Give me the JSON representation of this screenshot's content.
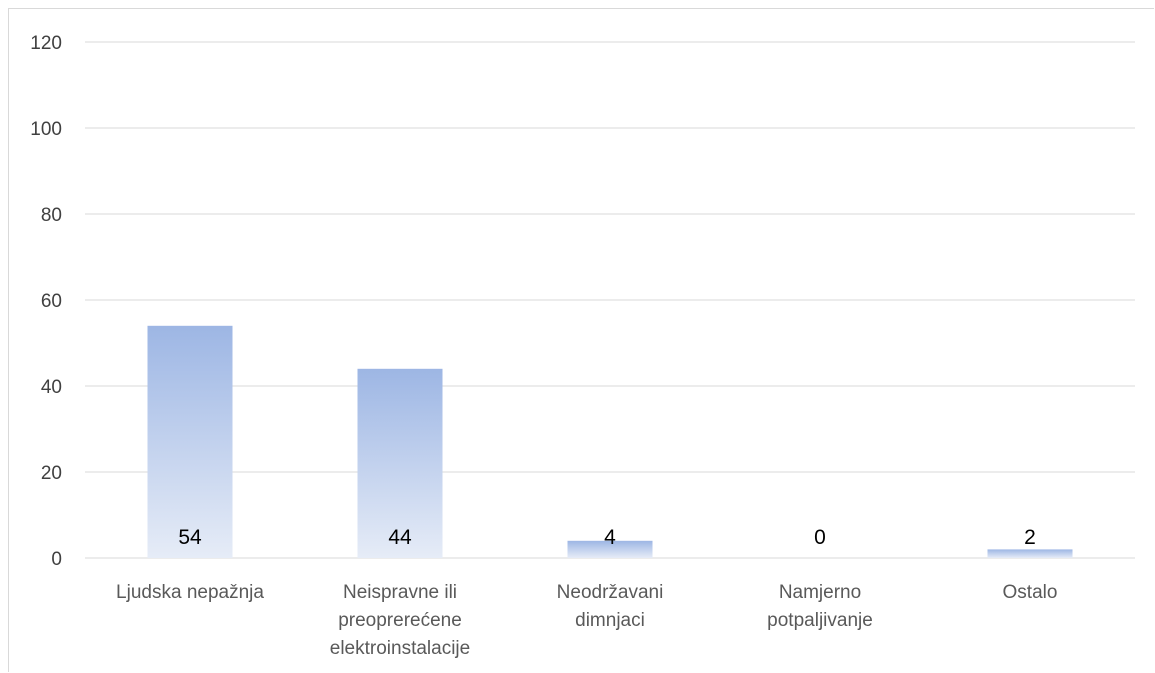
{
  "chart_data": {
    "type": "bar",
    "categories": [
      [
        "Ljudska nepažnja"
      ],
      [
        "Neispravne ili",
        "preoprerećene",
        "elektroinstalacije"
      ],
      [
        "Neodržavani",
        "dimnjaci"
      ],
      [
        "Namjerno",
        "potpaljivanje"
      ],
      [
        "Ostalo"
      ]
    ],
    "values": [
      54,
      44,
      4,
      0,
      2
    ],
    "data_labels": [
      "54",
      "44",
      "4",
      "0",
      "2"
    ],
    "ylim": [
      0,
      120
    ],
    "yticks": [
      "0",
      "20",
      "40",
      "60",
      "80",
      "100",
      "120"
    ],
    "grid": true,
    "bar_gradient": {
      "top": "#9db6e4",
      "bottom": "#e6ecf7"
    },
    "grid_color": "#d9d9d9"
  }
}
